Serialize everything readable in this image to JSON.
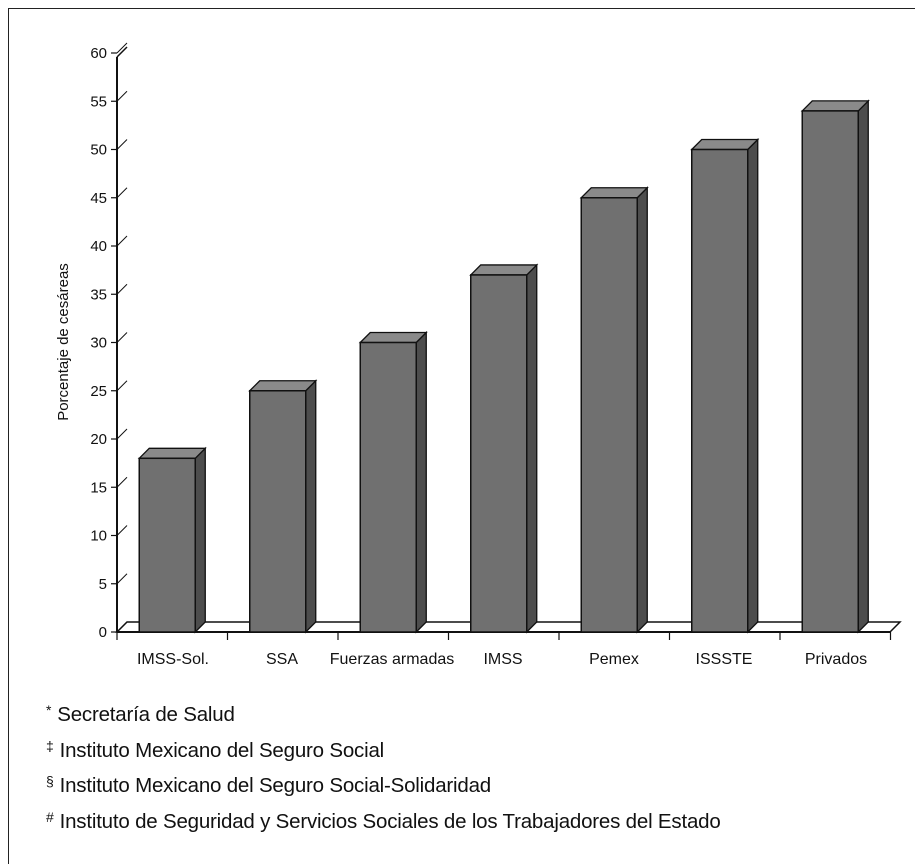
{
  "chart_data": {
    "type": "bar",
    "categories": [
      "IMSS-Sol.",
      "SSA",
      "Fuerzas armadas",
      "IMSS",
      "Pemex",
      "ISSSTE",
      "Privados"
    ],
    "values": [
      18,
      25,
      30,
      37,
      45,
      50,
      54
    ],
    "title": "",
    "xlabel": "",
    "ylabel": "Porcentaje de cesáreas",
    "ylim": [
      0,
      60
    ],
    "yticks": [
      0,
      5,
      10,
      15,
      20,
      25,
      30,
      35,
      40,
      45,
      50,
      55,
      60
    ],
    "grid": false,
    "style": "3d",
    "colors": {
      "bar_front": "#707070",
      "bar_top": "#8a8a8a",
      "bar_side": "#4d4d4d",
      "axis": "#111111"
    }
  },
  "footnotes": [
    {
      "mark": "*",
      "text": "Secretaría de Salud"
    },
    {
      "mark": "‡",
      "text": "Instituto Mexicano del Seguro Social"
    },
    {
      "mark": "§",
      "text": "Instituto Mexicano del Seguro Social-Solidaridad"
    },
    {
      "mark": "#",
      "text": "Instituto de Seguridad y Servicios Sociales de los Trabajadores del Estado"
    }
  ]
}
